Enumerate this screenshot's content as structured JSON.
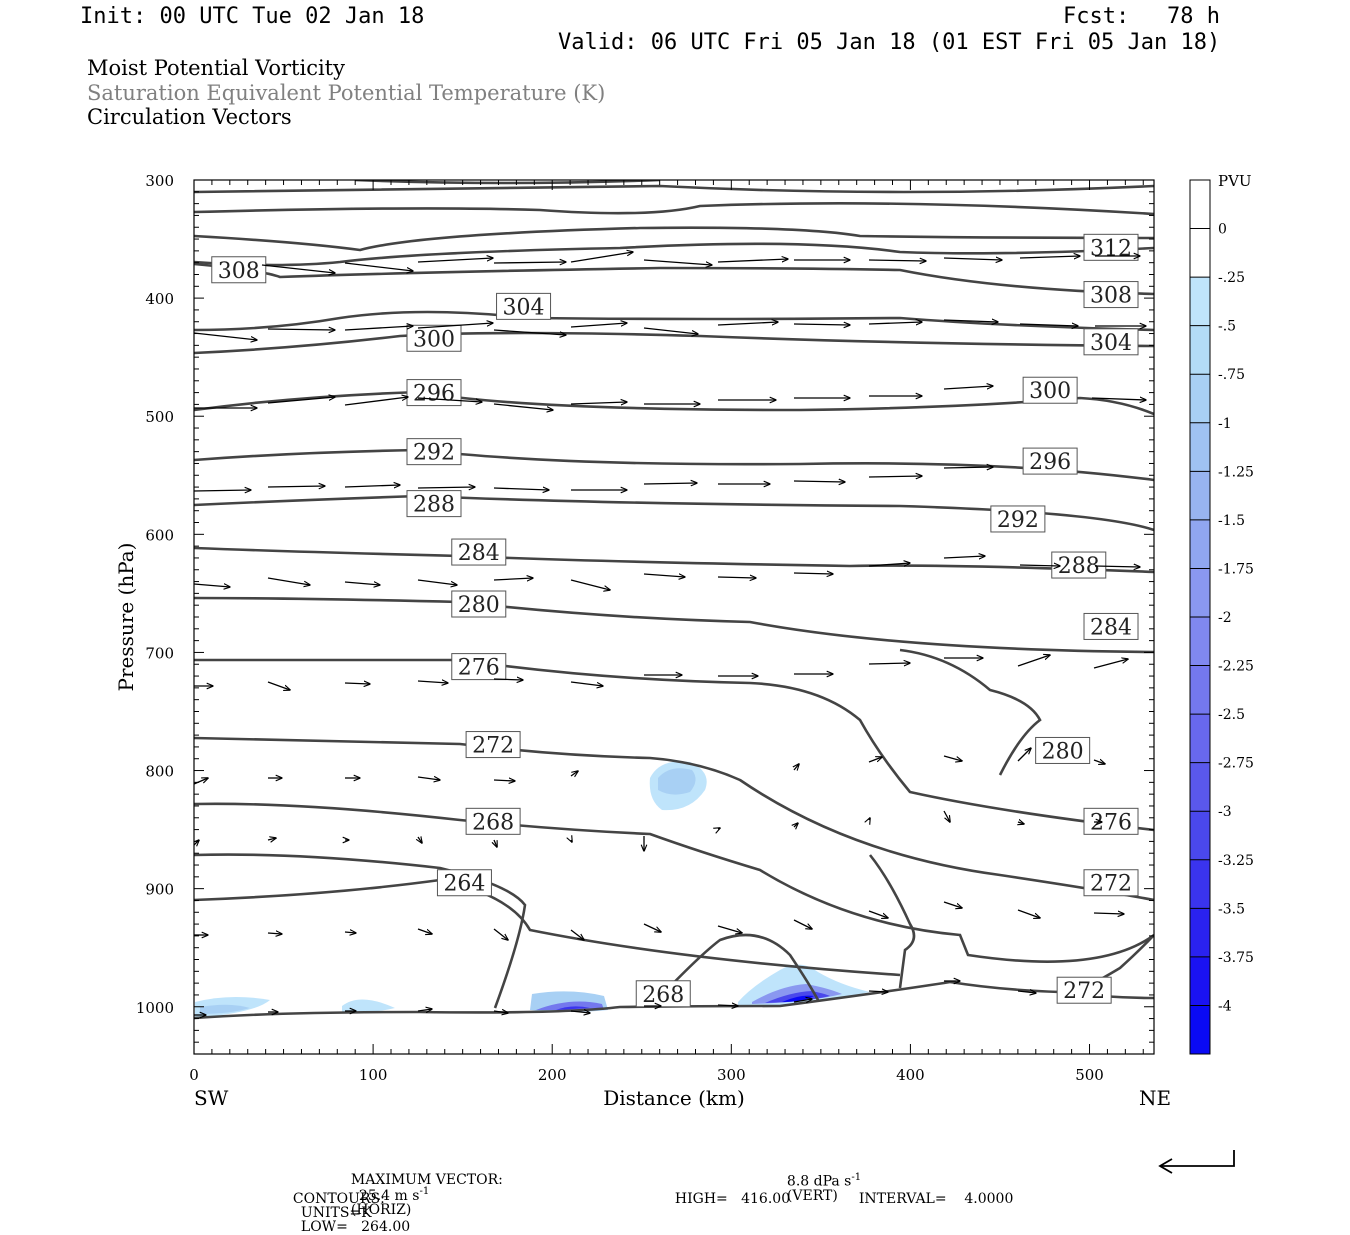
{
  "header": {
    "init": "Init: 00 UTC Tue 02 Jan 18",
    "fcst_label": "Fcst:",
    "fcst_value": "78 h",
    "valid": "Valid: 06 UTC Fri 05 Jan 18 (01 EST Fri 05 Jan 18)"
  },
  "legend": {
    "line1": "Moist Potential Vorticity",
    "line2": "Saturation Equivalent Potential Temperature (K)",
    "line3": "Circulation Vectors",
    "line2_color": "#808080"
  },
  "footer": {
    "max_vector_label": "MAXIMUM VECTOR:",
    "horiz": "25.4 m s",
    "horiz_unit": "(HORIZ)",
    "vert": "8.8 dPa s",
    "vert_unit": "(VERT)",
    "exp": "-1",
    "contours_label": "CONTOURS:",
    "units": "UNITS=K",
    "low": "LOW=   264.00",
    "high": "HIGH=   416.00",
    "interval": "INTERVAL=    4.0000"
  },
  "chart_data": {
    "type": "contour",
    "xlabel": "Distance (km)",
    "ylabel": "Pressure (hPa)",
    "x_left_label": "SW",
    "x_right_label": "NE",
    "xlim": [
      0,
      536
    ],
    "ylim": [
      1040,
      300
    ],
    "x_ticks": [
      "0",
      "100",
      "200",
      "300",
      "400",
      "500"
    ],
    "y_ticks": [
      "300",
      "400",
      "500",
      "600",
      "700",
      "800",
      "900",
      "1000"
    ],
    "contour_labels": [
      {
        "text": "308",
        "x": 25,
        "p": 376
      },
      {
        "text": "312",
        "x": 512,
        "p": 357
      },
      {
        "text": "304",
        "x": 184,
        "p": 407
      },
      {
        "text": "308",
        "x": 512,
        "p": 397
      },
      {
        "text": "300",
        "x": 134,
        "p": 434
      },
      {
        "text": "304",
        "x": 512,
        "p": 437
      },
      {
        "text": "296",
        "x": 134,
        "p": 480
      },
      {
        "text": "300",
        "x": 478,
        "p": 478
      },
      {
        "text": "292",
        "x": 134,
        "p": 530
      },
      {
        "text": "296",
        "x": 478,
        "p": 538
      },
      {
        "text": "288",
        "x": 134,
        "p": 574
      },
      {
        "text": "292",
        "x": 460,
        "p": 587
      },
      {
        "text": "284",
        "x": 159,
        "p": 615
      },
      {
        "text": "288",
        "x": 494,
        "p": 626
      },
      {
        "text": "280",
        "x": 159,
        "p": 659
      },
      {
        "text": "284",
        "x": 512,
        "p": 678
      },
      {
        "text": "276",
        "x": 159,
        "p": 712
      },
      {
        "text": "272",
        "x": 167,
        "p": 778
      },
      {
        "text": "280",
        "x": 485,
        "p": 783
      },
      {
        "text": "268",
        "x": 167,
        "p": 843
      },
      {
        "text": "276",
        "x": 512,
        "p": 843
      },
      {
        "text": "264",
        "x": 151,
        "p": 895
      },
      {
        "text": "272",
        "x": 512,
        "p": 895
      },
      {
        "text": "268",
        "x": 262,
        "p": 989
      },
      {
        "text": "272",
        "x": 497,
        "p": 986
      }
    ],
    "colorbar": {
      "unit": "PVU",
      "labels": [
        "0",
        "-.25",
        "-.5",
        "-.75",
        "-1",
        "-1.25",
        "-1.5",
        "-1.75",
        "-2",
        "-2.25",
        "-2.5",
        "-2.75",
        "-3",
        "-3.25",
        "-3.5",
        "-3.75",
        "-4"
      ],
      "colors": [
        "#ffffff",
        "#ffffff",
        "#bfe4fb",
        "#b3dcf7",
        "#a8d0f4",
        "#9fc2f2",
        "#98b4f0",
        "#90a6f0",
        "#8a98f0",
        "#8088ef",
        "#7478ee",
        "#6868ed",
        "#5a58ec",
        "#4a48ec",
        "#3a34ee",
        "#2a22ef",
        "#1a12f2",
        "#0a0af4"
      ]
    }
  }
}
